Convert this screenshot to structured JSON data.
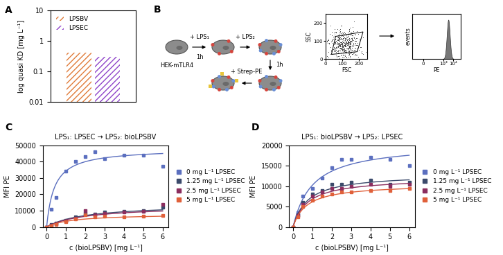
{
  "chart_data": [
    {
      "panel": "A",
      "type": "bar",
      "ylabel": "log quasi KD [mg L⁻¹]",
      "categories": [
        null
      ],
      "log": "y",
      "ylim": [
        0.01,
        10
      ],
      "yticks": [
        0.01,
        0.1,
        1,
        10
      ],
      "tick_labels": "y",
      "legend": "upper left",
      "series": [
        {
          "name": "LPSBV",
          "color": "#e07b39",
          "values": [
            0.42
          ]
        },
        {
          "name": "LPSEC",
          "color": "#8e44c9",
          "values": [
            0.3
          ]
        }
      ]
    },
    {
      "panel": "C",
      "type": "scatter",
      "title": "LPS₁: LPSEC → LPS₂: bioLPSBV",
      "xlabel": "c (bioLPSBV) [mg L⁻¹]",
      "ylabel": "MFI PE",
      "xlim": [
        -0.2,
        6.3
      ],
      "xticks": [
        0,
        1,
        2,
        3,
        4,
        5,
        6
      ],
      "ylim": [
        0,
        50000
      ],
      "yticks": [
        0,
        10000,
        20000,
        30000,
        40000,
        50000
      ],
      "legend": "right",
      "marker": "s",
      "line_style": "solid",
      "x": [
        0,
        0.25,
        0.5,
        1,
        1.5,
        2,
        2.5,
        3,
        4,
        5,
        6
      ],
      "series": [
        {
          "name": "0 mg L⁻¹ LPSEC",
          "color": "#5b6fbf",
          "values": [
            0,
            11000,
            18000,
            34000,
            40000,
            43000,
            46000,
            42000,
            44000,
            44000,
            37000
          ],
          "fit": {
            "bmax": 48000,
            "kd": 0.4
          }
        },
        {
          "name": "1.25 mg L⁻¹ LPSEC",
          "color": "#3b4a6b",
          "values": [
            0,
            1500,
            2500,
            4000,
            6000,
            8500,
            8000,
            9000,
            9500,
            10000,
            12000
          ],
          "fit": {
            "bmax": 14000,
            "kd": 2.0
          }
        },
        {
          "name": "2.5 mg L⁻¹ LPSEC",
          "color": "#8b2d5e",
          "values": [
            0,
            1000,
            2000,
            3500,
            5500,
            10000,
            7500,
            8500,
            9000,
            9500,
            14000
          ],
          "fit": {
            "bmax": 13000,
            "kd": 2.0
          }
        },
        {
          "name": "5 mg L⁻¹ LPSEC",
          "color": "#e0603a",
          "values": [
            0,
            800,
            1500,
            3000,
            5000,
            7500,
            6000,
            6500,
            6000,
            6500,
            7000
          ],
          "fit": {
            "bmax": 8000,
            "kd": 1.3
          }
        }
      ]
    },
    {
      "panel": "D",
      "type": "scatter",
      "title": "LPS₁: bioLPSBV → LPS₂: LPSEC",
      "xlabel": "c (bioLPSBV) [mg L⁻¹]",
      "ylabel": "MFI PE",
      "xlim": [
        -0.2,
        6.3
      ],
      "xticks": [
        0,
        1,
        2,
        3,
        4,
        5,
        6
      ],
      "ylim": [
        0,
        20000
      ],
      "yticks": [
        0,
        5000,
        10000,
        15000,
        20000
      ],
      "legend": "right",
      "marker": "s",
      "line_style": "solid",
      "x": [
        0,
        0.25,
        0.5,
        1,
        1.5,
        2,
        2.5,
        3,
        4,
        5,
        6
      ],
      "series": [
        {
          "name": "0 mg L⁻¹ LPSEC",
          "color": "#5b6fbf",
          "values": [
            0,
            3500,
            7500,
            9500,
            12000,
            14500,
            16500,
            16500,
            17000,
            16500,
            15000
          ],
          "fit": {
            "bmax": 20500,
            "kd": 1.0
          }
        },
        {
          "name": "1.25 mg L⁻¹ LPSEC",
          "color": "#3b4a6b",
          "values": [
            0,
            3000,
            6000,
            8000,
            9000,
            10500,
            10500,
            11000,
            11500,
            10500,
            11000
          ],
          "fit": {
            "bmax": 13000,
            "kd": 0.75
          }
        },
        {
          "name": "2.5 mg L⁻¹ LPSEC",
          "color": "#8b2d5e",
          "values": [
            0,
            2800,
            5500,
            7500,
            8500,
            9500,
            9500,
            10000,
            10500,
            10000,
            10500
          ],
          "fit": {
            "bmax": 12000,
            "kd": 0.75
          }
        },
        {
          "name": "5 mg L⁻¹ LPSEC",
          "color": "#e0603a",
          "values": [
            0,
            2500,
            5000,
            6500,
            7500,
            8000,
            8500,
            8500,
            9000,
            9000,
            9500
          ],
          "fit": {
            "bmax": 10500,
            "kd": 0.7
          }
        }
      ]
    }
  ],
  "diagram": {
    "panel": "B",
    "cell_label": "HEK-mTLR4",
    "step1": {
      "label": "+ LPS₁",
      "time": "1h"
    },
    "step2": {
      "label": "+ LPS₂"
    },
    "step3": {
      "time": "1h"
    },
    "step4": {
      "label": "+ Strep-PE"
    },
    "scatter": {
      "xlabel": "FSC",
      "ylabel": "SSC",
      "xlim": [
        0,
        250
      ],
      "ylim": [
        0,
        250
      ],
      "xticks": [
        0,
        100,
        200
      ],
      "yticks": [
        0,
        100,
        200
      ]
    },
    "histogram": {
      "xlabel": "PE",
      "ylabel": "events",
      "xlim": [
        -100,
        60000
      ],
      "xticks": [
        0,
        {
          "value": 1000,
          "label": "10³"
        },
        {
          "value": 10000,
          "label": "10⁴"
        }
      ]
    }
  }
}
